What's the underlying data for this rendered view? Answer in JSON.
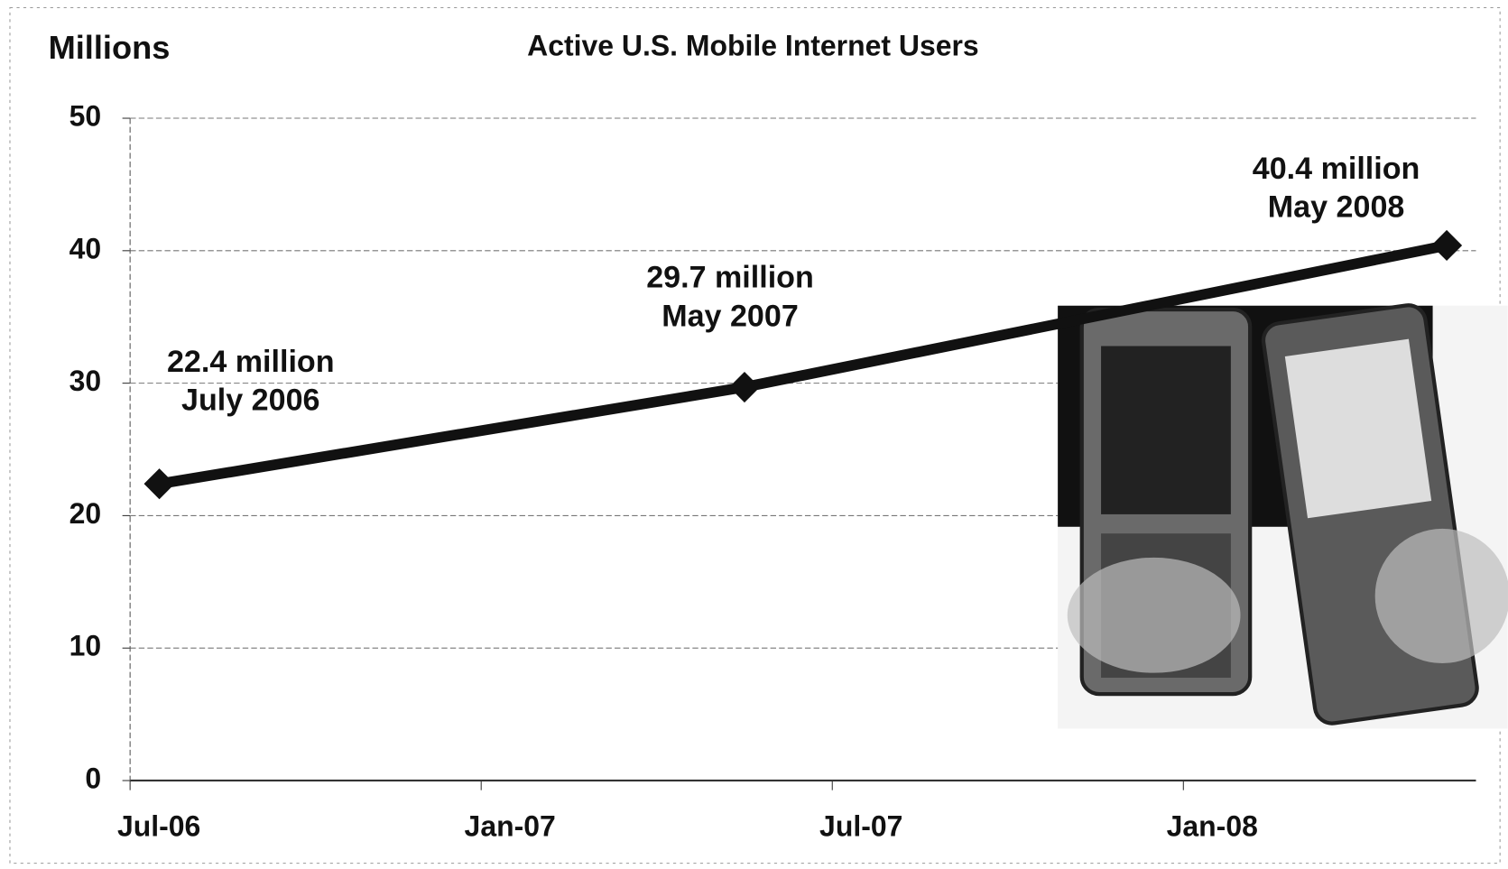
{
  "chart_data": {
    "type": "line",
    "title": "Active U.S. Mobile Internet Users",
    "y_label": "Millions",
    "x": [
      "2006-07",
      "2007-05",
      "2008-05"
    ],
    "series": [
      {
        "name": "Active U.S. Mobile Internet Users",
        "color": "#111111",
        "values": [
          22.4,
          29.7,
          40.4
        ],
        "value_labels": [
          "22.4 million",
          "29.7 million",
          "40.4 million"
        ],
        "date_labels": [
          "July 2006",
          "May 2007",
          "May 2008"
        ]
      }
    ],
    "xlim": [
      "2006-07",
      "2008-06"
    ],
    "xticks": [
      {
        "value": "2006-07",
        "label": "Jul-06"
      },
      {
        "value": "2007-01",
        "label": "Jan-07"
      },
      {
        "value": "2007-07",
        "label": "Jul-07"
      },
      {
        "value": "2008-01",
        "label": "Jan-08"
      }
    ],
    "ylim": [
      0,
      50
    ],
    "yticks": [
      0,
      10,
      20,
      30,
      40,
      50
    ],
    "grid": true
  }
}
